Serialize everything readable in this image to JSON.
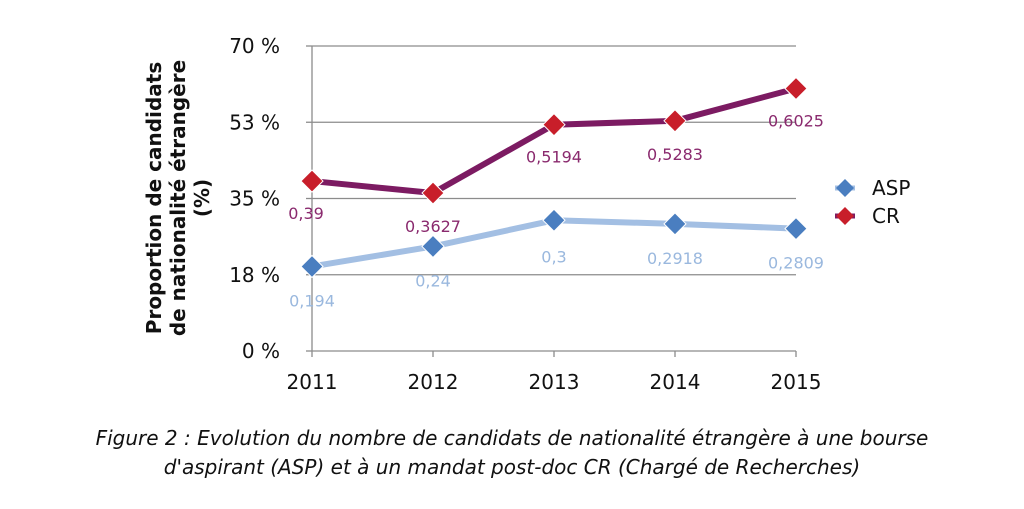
{
  "chart_data": {
    "type": "line",
    "ylabel_lines": [
      "Proportion de candidats",
      "de nationalité étrangère",
      "(%)"
    ],
    "categories": [
      "2011",
      "2012",
      "2013",
      "2014",
      "2015"
    ],
    "y_ticks": [
      "0 %",
      "18 %",
      "35 %",
      "53 %",
      "70 %"
    ],
    "ylim": [
      0,
      0.7
    ],
    "grid": true,
    "legend_position": "right",
    "series": [
      {
        "name": "ASP",
        "values": [
          0.194,
          0.24,
          0.3,
          0.2918,
          0.2809
        ],
        "labels": [
          "0,194",
          "0,24",
          "0,3",
          "0,2918",
          "0,2809"
        ],
        "line_color": "#a3bfe3",
        "marker_color": "#4a7ec0",
        "label_color": "#9ab8de"
      },
      {
        "name": "CR",
        "values": [
          0.39,
          0.3627,
          0.5194,
          0.5283,
          0.6025
        ],
        "labels": [
          "0,39",
          "0,3627",
          "0,5194",
          "0,5283",
          "0,6025"
        ],
        "line_color": "#7c1b62",
        "marker_color": "#c81e2a",
        "label_color": "#8a2a6e"
      }
    ]
  },
  "caption": {
    "line1": "Figure 2 : Evolution du nombre de candidats de nationalité étrangère à une bourse",
    "line2": "d'aspirant (ASP) et à un mandat post-doc CR (Chargé de Recherches)"
  }
}
